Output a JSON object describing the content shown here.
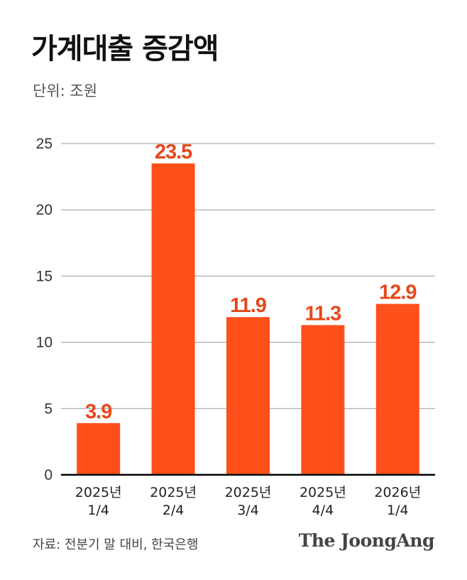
{
  "header": {
    "title": "가계대출 증감액",
    "unit": "단위: 조원"
  },
  "footer": {
    "source": "자료: 전분기 말 대비, 한국은행",
    "brand": "The JoongAng"
  },
  "colors": {
    "bar": "#FF4F1A",
    "label": "#E8471A",
    "grid": "#999999",
    "axis": "#000000"
  },
  "chart_data": {
    "type": "bar",
    "categories": [
      [
        "2025년",
        "1/4"
      ],
      [
        "2025년",
        "2/4"
      ],
      [
        "2025년",
        "3/4"
      ],
      [
        "2025년",
        "4/4"
      ],
      [
        "2026년",
        "1/4"
      ]
    ],
    "values": [
      3.9,
      23.5,
      11.9,
      11.3,
      12.9
    ],
    "value_labels": [
      "3.9",
      "23.5",
      "11.9",
      "11.3",
      "12.9"
    ],
    "yticks": [
      0,
      5,
      10,
      15,
      20,
      25
    ],
    "ylim": [
      0,
      25
    ],
    "grid": true,
    "legend": "none"
  }
}
